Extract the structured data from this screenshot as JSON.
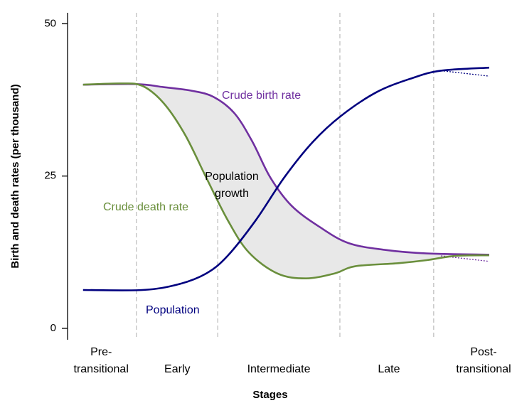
{
  "chart_data": {
    "type": "line",
    "y_label": "Birth and death rates (per thousand)",
    "x_label": "Stages",
    "ylim": [
      0,
      53.9
    ],
    "yticks": [
      0,
      25,
      50
    ],
    "xlim": [
      0,
      100
    ],
    "stage_bounds": [
      16,
      34.9,
      63.3,
      85.1
    ],
    "stages": [
      {
        "lines": [
          "Pre-",
          "transitional"
        ],
        "x": 7.8
      },
      {
        "lines": [
          "Early"
        ],
        "x": 25.5
      },
      {
        "lines": [
          "Intermediate"
        ],
        "x": 49.1
      },
      {
        "lines": [
          "Late"
        ],
        "x": 74.7
      },
      {
        "lines": [
          "Post-",
          "transitional"
        ],
        "x": 96.7
      }
    ],
    "series": [
      {
        "name": "Crude birth rate",
        "color": "#7030a0",
        "x": [
          3.6,
          16,
          22.3,
          28.9,
          33.9,
          38.8,
          43,
          47.1,
          52.1,
          58.7,
          65.3,
          73.6,
          83.5,
          98
        ],
        "values": [
          40,
          40.1,
          39.6,
          39,
          38,
          35.3,
          30.6,
          24.8,
          20.1,
          16.6,
          14,
          12.9,
          12.3,
          12.1
        ]
      },
      {
        "name": "Crude death rate",
        "color": "#6a8f3c",
        "x": [
          3.6,
          12.4,
          17.4,
          22.3,
          27.3,
          32.2,
          37.2,
          42.1,
          48.8,
          55.4,
          62,
          66.9,
          76.9,
          83.5,
          90.1,
          98
        ],
        "values": [
          40,
          40.2,
          39.8,
          37,
          31.8,
          24.8,
          17.8,
          12.5,
          9,
          8.2,
          9,
          10.2,
          10.7,
          11.2,
          11.9,
          12
        ]
      },
      {
        "name": "Population",
        "color": "#00007f",
        "x": [
          3.6,
          17.4,
          25.6,
          32.2,
          37.2,
          43.8,
          50.4,
          57,
          63.6,
          71.9,
          80.2,
          86.8,
          98
        ],
        "values": [
          6.3,
          6.3,
          7.2,
          9,
          11.9,
          17.8,
          24.8,
          30.6,
          34.9,
          38.8,
          41.1,
          42.3,
          42.8
        ]
      }
    ],
    "dotted": [
      {
        "color": "#7030a0",
        "x": [
          86.8,
          98
        ],
        "values": [
          11.9,
          11
        ]
      },
      {
        "color": "#00007f",
        "x": [
          86.8,
          98
        ],
        "values": [
          42.3,
          41.4
        ]
      }
    ],
    "annotations": [
      {
        "lines": [
          "Population",
          "growth"
        ],
        "color": "#000000"
      }
    ],
    "fill_color": "#e8e8e8",
    "boundary_color": "#bbbbbb"
  }
}
